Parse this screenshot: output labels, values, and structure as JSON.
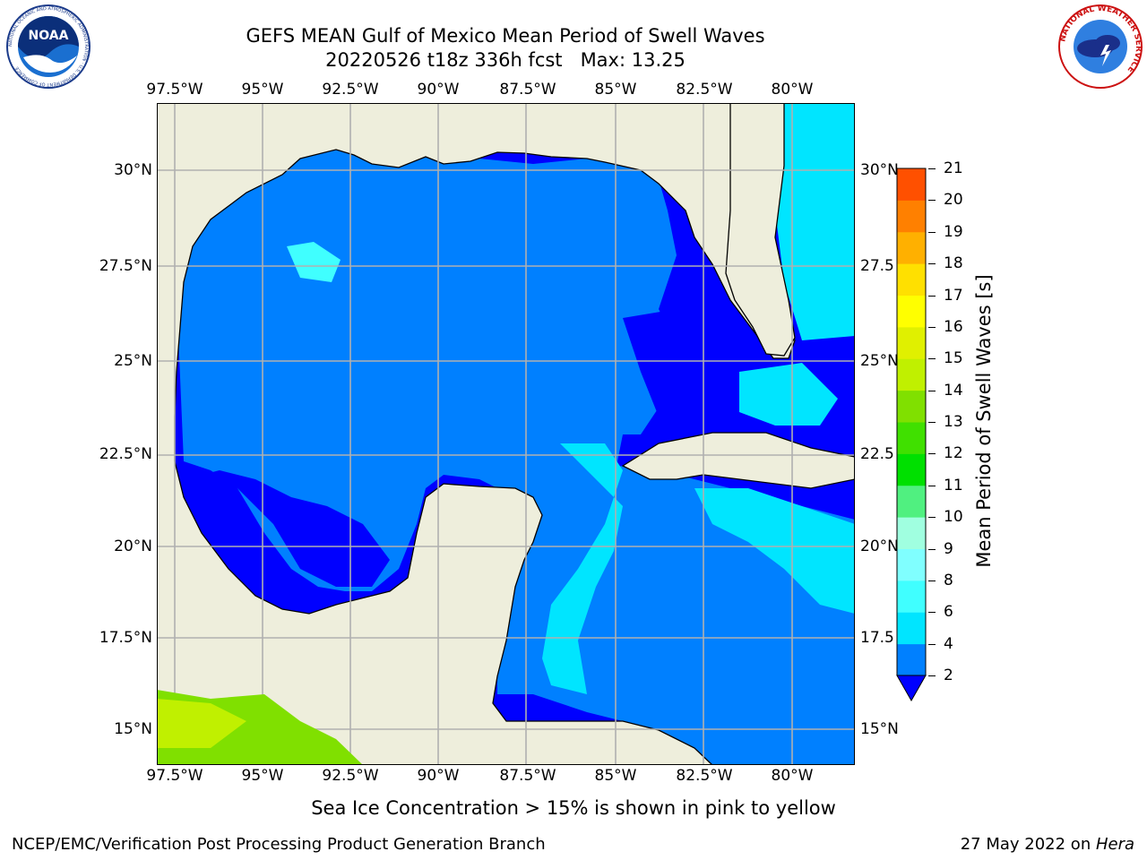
{
  "header": {
    "title": "GEFS MEAN Gulf of Mexico Mean Period of Swell Waves",
    "subtitle": "20220526 t18z 336h fcst   Max: 13.25"
  },
  "note": "Sea Ice Concentration > 15% is shown in pink to yellow",
  "footer": {
    "left": "NCEP/EMC/Verification Post Processing Product Generation Branch",
    "right_prefix": "27 May 2022 on ",
    "right_machine": "Hera"
  },
  "logos": {
    "noaa_text": "NOAA",
    "noaa_ring": "NATIONAL OCEANIC AND ATMOSPHERIC ADMINISTRATION · U.S. DEPARTMENT OF COMMERCE",
    "nws_ring": "NATIONAL WEATHER SERVICE"
  },
  "map": {
    "lon_labels": [
      "97.5°W",
      "95°W",
      "92.5°W",
      "90°W",
      "87.5°W",
      "85°W",
      "82.5°W",
      "80°W"
    ],
    "lat_labels_left": [
      "30°N",
      "27.5°N",
      "25°N",
      "22.5°N",
      "20°N",
      "17.5°N",
      "15°N"
    ],
    "lat_labels_right": [
      "30°N",
      "27.5",
      "25°N",
      "22.5",
      "20°N",
      "17.5",
      "15°N"
    ],
    "land_color": "#eeeedc",
    "coast_color": "#000000",
    "grid_color": "#b0b0b0"
  },
  "colorbar": {
    "label": "Mean Period of Swell Waves [s]",
    "ticks": [
      "2",
      "4",
      "6",
      "8",
      "9",
      "10",
      "11",
      "12",
      "13",
      "14",
      "15",
      "16",
      "17",
      "18",
      "19",
      "20",
      "21"
    ],
    "colors": [
      "#0080ff",
      "#00e5ff",
      "#40ffff",
      "#80ffff",
      "#a0ffe0",
      "#50f080",
      "#00e000",
      "#40e000",
      "#80e000",
      "#c0f000",
      "#e0f000",
      "#ffff00",
      "#ffe000",
      "#ffb000",
      "#ff8000",
      "#ff5000",
      "#ff2000",
      "#ff0000"
    ],
    "extend_color": "#0000ff"
  }
}
